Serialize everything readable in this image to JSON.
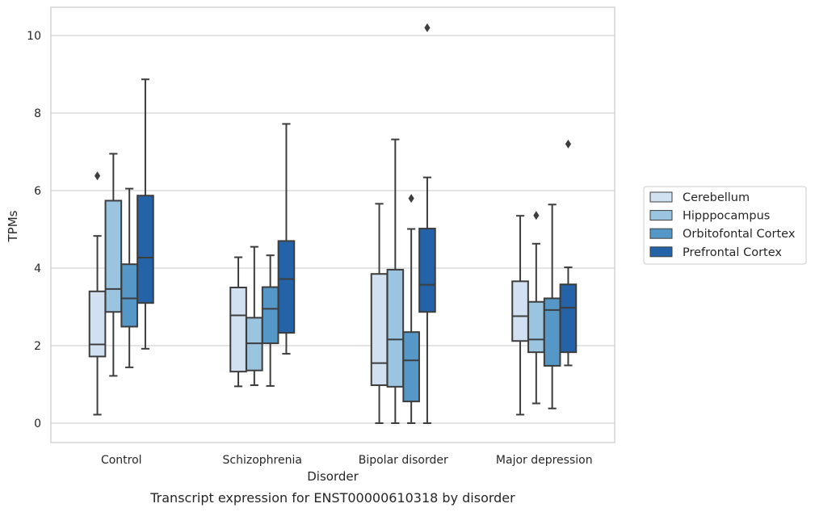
{
  "caption": "Transcript expression for ENST00000610318 by disorder",
  "chart_data": {
    "type": "box",
    "xlabel": "Disorder",
    "ylabel": "TPMs",
    "ylim": [
      -0.5,
      10.7
    ],
    "yticks": [
      0,
      2,
      4,
      6,
      8,
      10
    ],
    "grid": "horizontal",
    "legend_position": "right",
    "categories": [
      "Control",
      "Schizophrenia",
      "Bipolar disorder",
      "Major depression"
    ],
    "series": [
      {
        "name": "Cerebellum",
        "color": "#d1e1f1",
        "boxes": [
          {
            "whisker_low": 0.22,
            "q1": 1.72,
            "median": 2.03,
            "q3": 3.4,
            "whisker_high": 4.83,
            "outliers": [
              6.38
            ]
          },
          {
            "whisker_low": 0.95,
            "q1": 1.33,
            "median": 2.78,
            "q3": 3.5,
            "whisker_high": 4.28,
            "outliers": []
          },
          {
            "whisker_low": 0.0,
            "q1": 0.98,
            "median": 1.55,
            "q3": 3.85,
            "whisker_high": 5.66,
            "outliers": []
          },
          {
            "whisker_low": 0.22,
            "q1": 2.12,
            "median": 2.76,
            "q3": 3.66,
            "whisker_high": 5.35,
            "outliers": []
          }
        ]
      },
      {
        "name": "Hipppocampus",
        "color": "#9ac4df",
        "boxes": [
          {
            "whisker_low": 1.22,
            "q1": 2.87,
            "median": 3.46,
            "q3": 5.74,
            "whisker_high": 6.95,
            "outliers": []
          },
          {
            "whisker_low": 0.98,
            "q1": 1.36,
            "median": 2.06,
            "q3": 2.72,
            "whisker_high": 4.55,
            "outliers": []
          },
          {
            "whisker_low": 0.0,
            "q1": 0.94,
            "median": 2.16,
            "q3": 3.96,
            "whisker_high": 7.32,
            "outliers": []
          },
          {
            "whisker_low": 0.51,
            "q1": 1.83,
            "median": 2.16,
            "q3": 3.13,
            "whisker_high": 4.63,
            "outliers": [
              5.36
            ]
          }
        ]
      },
      {
        "name": "Orbitofontal Cortex",
        "color": "#5598c8",
        "boxes": [
          {
            "whisker_low": 1.44,
            "q1": 2.49,
            "median": 3.22,
            "q3": 4.1,
            "whisker_high": 6.05,
            "outliers": []
          },
          {
            "whisker_low": 0.96,
            "q1": 2.06,
            "median": 2.95,
            "q3": 3.51,
            "whisker_high": 4.33,
            "outliers": []
          },
          {
            "whisker_low": 0.0,
            "q1": 0.56,
            "median": 1.62,
            "q3": 2.35,
            "whisker_high": 5.01,
            "outliers": [
              5.8
            ]
          },
          {
            "whisker_low": 0.38,
            "q1": 1.48,
            "median": 2.92,
            "q3": 3.22,
            "whisker_high": 5.64,
            "outliers": []
          }
        ]
      },
      {
        "name": "Prefrontal Cortex",
        "color": "#2563a8",
        "boxes": [
          {
            "whisker_low": 1.92,
            "q1": 3.1,
            "median": 4.27,
            "q3": 5.87,
            "whisker_high": 8.87,
            "outliers": []
          },
          {
            "whisker_low": 1.79,
            "q1": 2.33,
            "median": 3.72,
            "q3": 4.7,
            "whisker_high": 7.72,
            "outliers": []
          },
          {
            "whisker_low": 0.0,
            "q1": 2.87,
            "median": 3.57,
            "q3": 5.02,
            "whisker_high": 6.34,
            "outliers": [
              10.2
            ]
          },
          {
            "whisker_low": 1.49,
            "q1": 1.83,
            "median": 2.98,
            "q3": 3.58,
            "whisker_high": 4.02,
            "outliers": [
              7.2
            ]
          }
        ]
      }
    ]
  }
}
